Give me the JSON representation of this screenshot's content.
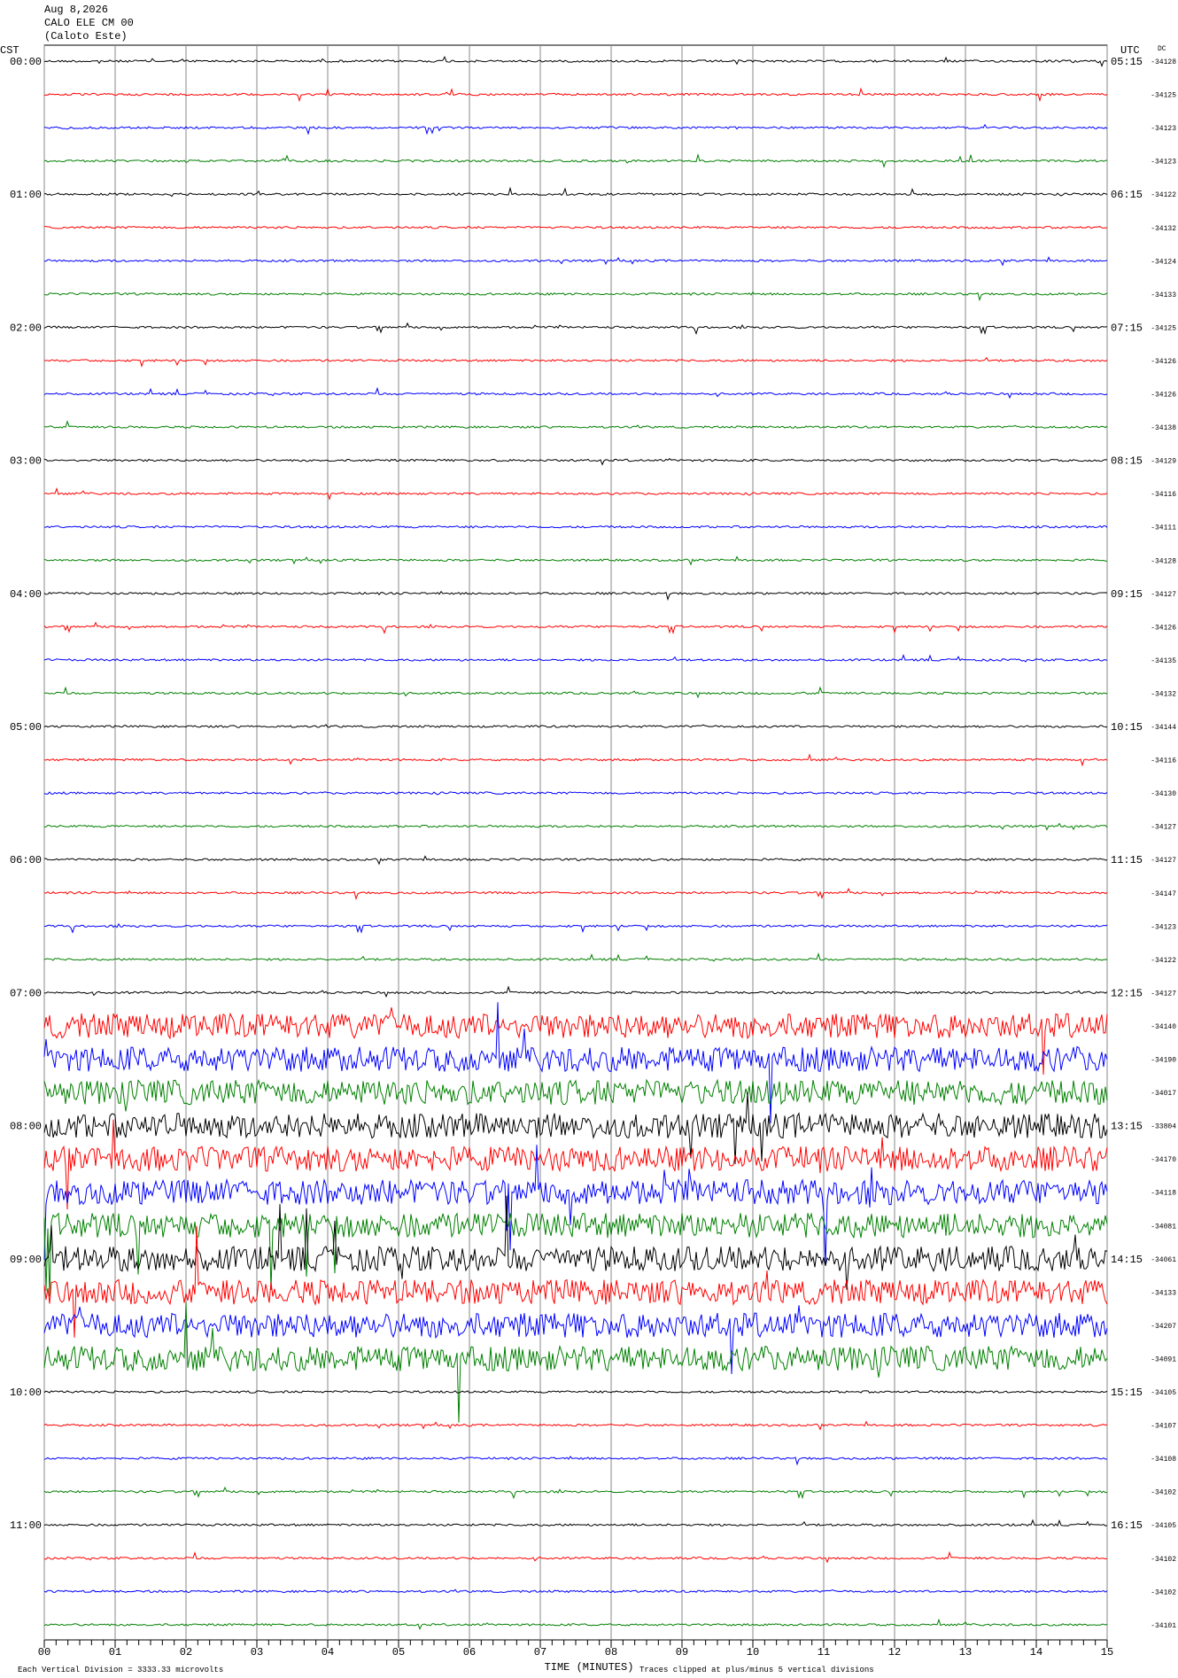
{
  "header": {
    "date": "Aug 8,2026",
    "station": "CALO ELE CM 00",
    "site": "(Caloto Este)"
  },
  "left_axis": {
    "title": "CST",
    "labels": [
      "00:00",
      "01:00",
      "02:00",
      "03:00",
      "04:00",
      "05:00",
      "06:00",
      "07:00",
      "08:00",
      "09:00",
      "10:00",
      "11:00"
    ]
  },
  "right_axis": {
    "title": "UTC",
    "dc_title": "DC",
    "labels": [
      "05:15",
      "06:15",
      "07:15",
      "08:15",
      "09:15",
      "10:15",
      "11:15",
      "12:15",
      "13:15",
      "14:15",
      "15:15",
      "16:15"
    ]
  },
  "dc_values": [
    -34128,
    -34125,
    -34123,
    -34123,
    -34122,
    -34132,
    -34124,
    -34133,
    -34125,
    -34126,
    -34126,
    -34138,
    -34129,
    -34116,
    -34111,
    -34128,
    -34127,
    -34126,
    -34135,
    -34132,
    -34144,
    -34116,
    -34130,
    -34127,
    -34127,
    -34147,
    -34123,
    -34122,
    -34127,
    -34140,
    -34190,
    -34017,
    -33804,
    -34170,
    -34118,
    -34081,
    -34061,
    -34133,
    -34207,
    -34091,
    -34105,
    -34107,
    -34108,
    -34102,
    -34105,
    -34102,
    -34102,
    -34101
  ],
  "x_axis": {
    "title": "TIME (MINUTES)",
    "ticks": [
      {
        "value": 0,
        "label": "00"
      },
      {
        "value": 1,
        "label": "01"
      },
      {
        "value": 2,
        "label": "02"
      },
      {
        "value": 3,
        "label": "03"
      },
      {
        "value": 4,
        "label": "04"
      },
      {
        "value": 5,
        "label": "05"
      },
      {
        "value": 6,
        "label": "06"
      },
      {
        "value": 7,
        "label": "07"
      },
      {
        "value": 8,
        "label": "08"
      },
      {
        "value": 9,
        "label": "09"
      },
      {
        "value": 10,
        "label": "10"
      },
      {
        "value": 11,
        "label": "11"
      },
      {
        "value": 12,
        "label": "12"
      },
      {
        "value": 13,
        "label": "13"
      },
      {
        "value": 14,
        "label": "14"
      },
      {
        "value": 15,
        "label": "15"
      }
    ]
  },
  "footer": {
    "scale_note": "Each Vertical Division = 3333.33 microvolts",
    "clip_note": "Traces clipped at plus/minus 5 vertical divisions"
  }
}
